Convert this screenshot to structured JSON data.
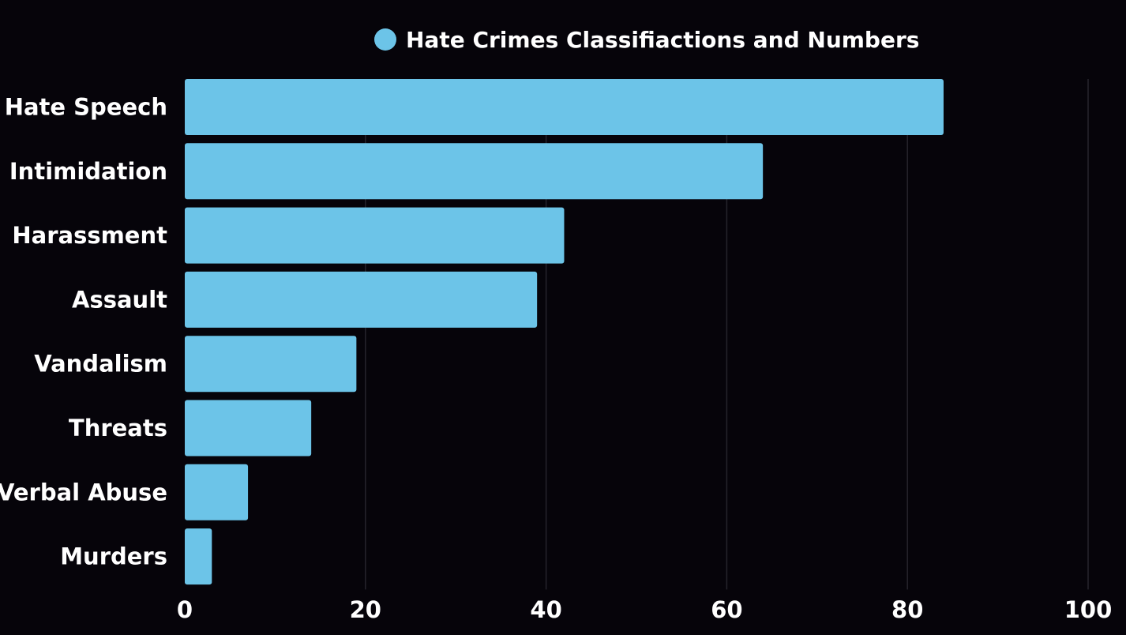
{
  "chart_data": {
    "type": "bar",
    "orientation": "horizontal",
    "legend_position": "top-center",
    "grid": true,
    "xlim": [
      0,
      100
    ],
    "x_ticks": [
      "0",
      "20",
      "40",
      "60",
      "80",
      "100"
    ],
    "categories": [
      "Hate Speech",
      "Intimidation",
      "Harassment",
      "Assault",
      "Vandalism",
      "Threats",
      "Verbal Abuse",
      "Murders"
    ],
    "series": [
      {
        "name": "Hate Crimes Classifiactions and Numbers",
        "color": "#6cc4e8",
        "values": [
          84,
          64,
          42,
          39,
          19,
          14,
          7,
          3
        ]
      }
    ]
  }
}
